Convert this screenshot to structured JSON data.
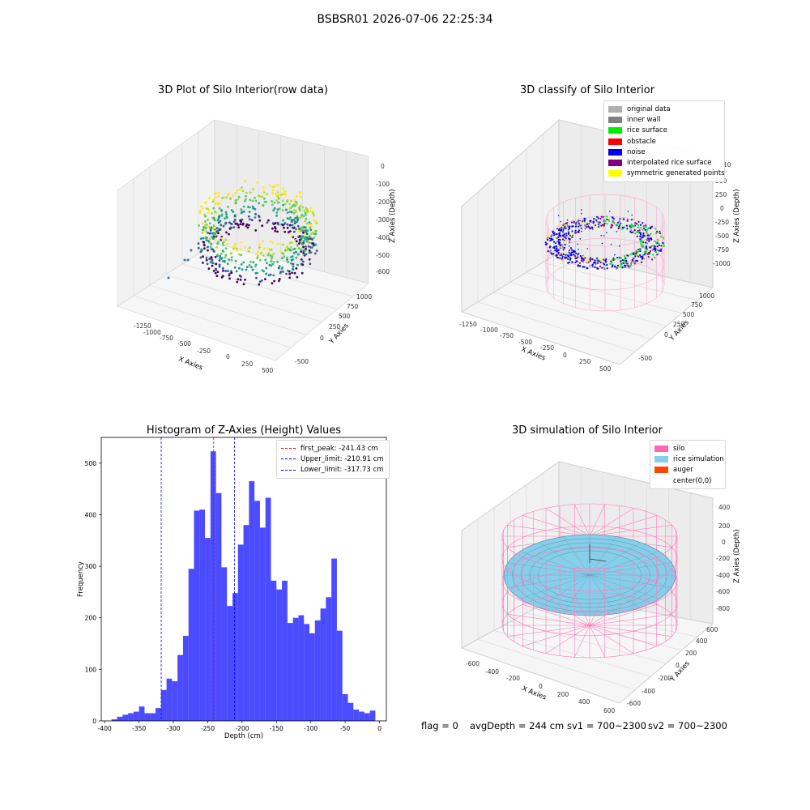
{
  "suptitle": "BSBSR01 2026-07-06 22:25:34",
  "chart_data": [
    {
      "type": "scatter3d",
      "title": "3D Plot of Silo Interior(row data)",
      "xlabel": "X Axies",
      "ylabel": "Y Axies",
      "zlabel": "Z Axies (Depth)",
      "xticks": [
        "-1250",
        "-1000",
        "-750",
        "-500",
        "-250",
        "0",
        "250",
        "500"
      ],
      "yticks": [
        "-500",
        "0",
        "250",
        "500",
        "750",
        "1000"
      ],
      "zticks": [
        "0",
        "-100",
        "-200",
        "-300",
        "-400",
        "-500",
        "-600"
      ],
      "xlim": [
        -1400,
        600
      ],
      "ylim": [
        -600,
        1100
      ],
      "zlim": [
        -650,
        10
      ],
      "colormap": "viridis",
      "description_points": "ring of points around center (0,0) radius ~600, depth -150 to -600"
    },
    {
      "type": "scatter3d",
      "title": "3D classify of Silo Interior",
      "xlabel": "X Axies",
      "ylabel": "Y Axies",
      "zlabel": "Z Axies (Depth)",
      "xticks": [
        "-1250",
        "-1000",
        "-750",
        "-500",
        "-250",
        "0",
        "250",
        "500"
      ],
      "yticks": [
        "-500",
        "0",
        "250",
        "500",
        "750",
        "1000"
      ],
      "zticks": [
        "500",
        "250",
        "0",
        "-250",
        "-500",
        "-750",
        "-1000"
      ],
      "extra_zlabel": "10",
      "legend": [
        {
          "label": "original data",
          "color": "#b0b0b0"
        },
        {
          "label": "inner wall",
          "color": "#808080"
        },
        {
          "label": "rice surface",
          "color": "#00ee00"
        },
        {
          "label": "obstacle",
          "color": "#ff0000"
        },
        {
          "label": "noise",
          "color": "#0000ee"
        },
        {
          "label": "interpolated rice surface",
          "color": "#800080"
        },
        {
          "label": "symmetric generated points",
          "color": "#ffff00"
        }
      ]
    },
    {
      "type": "bar",
      "title": "Histogram of Z-Axies (Height) Values",
      "xlabel": "Depth (cm)",
      "ylabel": "Frequency",
      "xlim": [
        -405,
        10
      ],
      "ylim": [
        0,
        550
      ],
      "xticks": [
        -400,
        -350,
        -300,
        -250,
        -200,
        -150,
        -100,
        -50,
        0
      ],
      "yticks": [
        0,
        100,
        200,
        300,
        400,
        500
      ],
      "bin_start": -390,
      "bin_width": 8,
      "values": [
        3,
        8,
        12,
        15,
        18,
        28,
        15,
        15,
        25,
        60,
        82,
        77,
        128,
        165,
        295,
        408,
        410,
        355,
        523,
        442,
        298,
        223,
        248,
        342,
        380,
        465,
        427,
        375,
        433,
        272,
        255,
        272,
        190,
        200,
        205,
        188,
        170,
        195,
        218,
        240,
        315,
        175,
        52,
        35,
        22,
        18,
        15,
        20
      ],
      "bar_color": "#0000ff",
      "vlines": [
        {
          "label": "first_peak: -241.43 cm",
          "x": -241.43,
          "color": "#ff0000"
        },
        {
          "label": "Upper_limit: -210.91 cm",
          "x": -210.91,
          "color": "#0000ff"
        },
        {
          "label": "Lower_limit: -317.73 cm",
          "x": -317.73,
          "color": "#0000ff"
        }
      ]
    },
    {
      "type": "surface3d",
      "title": "3D simulation of Silo Interior",
      "xlabel": "X Axies",
      "ylabel": "Y Axies",
      "zlabel": "Z Axies (Depth)",
      "xticks": [
        "-600",
        "-400",
        "-200",
        "0",
        "200",
        "400",
        "600"
      ],
      "yticks": [
        "-600",
        "-400",
        "-200",
        "0",
        "200",
        "400",
        "600"
      ],
      "zticks": [
        "400",
        "200",
        "0",
        "-200",
        "-400",
        "-600",
        "-800"
      ],
      "legend": [
        {
          "label": "silo",
          "color": "#ff69b4"
        },
        {
          "label": "rice simulation",
          "color": "#87ceeb"
        },
        {
          "label": "auger",
          "color": "#ff4500"
        },
        {
          "label": "center(0,0)",
          "color": ""
        }
      ]
    }
  ],
  "footer": {
    "flag": "flag = 0",
    "avg": "avgDepth = 244 cm",
    "sv1": "sv1 = 700~2300",
    "sv2": "sv2 = 700~2300"
  }
}
